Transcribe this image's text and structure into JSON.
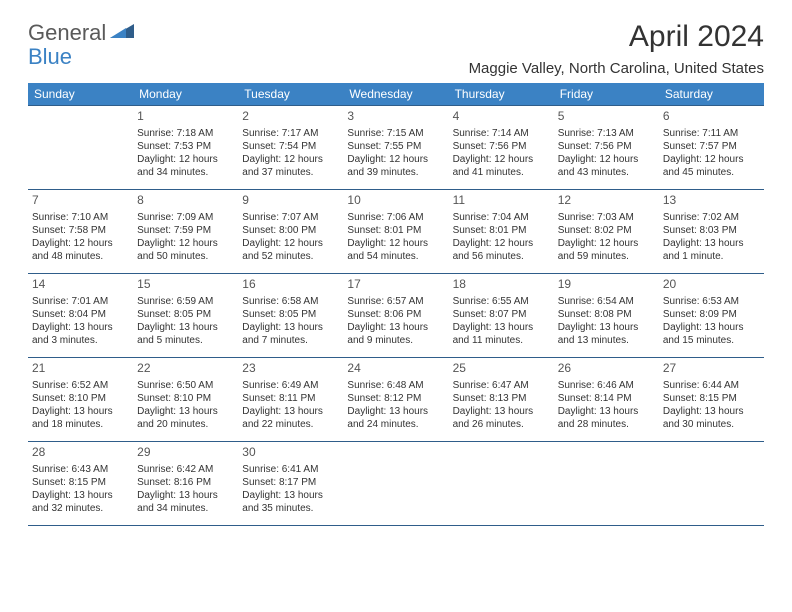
{
  "logo": {
    "general": "General",
    "blue": "Blue"
  },
  "title": "April 2024",
  "location": "Maggie Valley, North Carolina, United States",
  "colors": {
    "header_bg": "#3b82c4",
    "header_text": "#ffffff",
    "border": "#2f5d8a",
    "body_text": "#333333",
    "logo_gray": "#5a5a5a",
    "logo_blue": "#3b82c4"
  },
  "dayHeaders": [
    "Sunday",
    "Monday",
    "Tuesday",
    "Wednesday",
    "Thursday",
    "Friday",
    "Saturday"
  ],
  "weeks": [
    [
      null,
      {
        "n": "1",
        "sr": "Sunrise: 7:18 AM",
        "ss": "Sunset: 7:53 PM",
        "dl": "Daylight: 12 hours and 34 minutes."
      },
      {
        "n": "2",
        "sr": "Sunrise: 7:17 AM",
        "ss": "Sunset: 7:54 PM",
        "dl": "Daylight: 12 hours and 37 minutes."
      },
      {
        "n": "3",
        "sr": "Sunrise: 7:15 AM",
        "ss": "Sunset: 7:55 PM",
        "dl": "Daylight: 12 hours and 39 minutes."
      },
      {
        "n": "4",
        "sr": "Sunrise: 7:14 AM",
        "ss": "Sunset: 7:56 PM",
        "dl": "Daylight: 12 hours and 41 minutes."
      },
      {
        "n": "5",
        "sr": "Sunrise: 7:13 AM",
        "ss": "Sunset: 7:56 PM",
        "dl": "Daylight: 12 hours and 43 minutes."
      },
      {
        "n": "6",
        "sr": "Sunrise: 7:11 AM",
        "ss": "Sunset: 7:57 PM",
        "dl": "Daylight: 12 hours and 45 minutes."
      }
    ],
    [
      {
        "n": "7",
        "sr": "Sunrise: 7:10 AM",
        "ss": "Sunset: 7:58 PM",
        "dl": "Daylight: 12 hours and 48 minutes."
      },
      {
        "n": "8",
        "sr": "Sunrise: 7:09 AM",
        "ss": "Sunset: 7:59 PM",
        "dl": "Daylight: 12 hours and 50 minutes."
      },
      {
        "n": "9",
        "sr": "Sunrise: 7:07 AM",
        "ss": "Sunset: 8:00 PM",
        "dl": "Daylight: 12 hours and 52 minutes."
      },
      {
        "n": "10",
        "sr": "Sunrise: 7:06 AM",
        "ss": "Sunset: 8:01 PM",
        "dl": "Daylight: 12 hours and 54 minutes."
      },
      {
        "n": "11",
        "sr": "Sunrise: 7:04 AM",
        "ss": "Sunset: 8:01 PM",
        "dl": "Daylight: 12 hours and 56 minutes."
      },
      {
        "n": "12",
        "sr": "Sunrise: 7:03 AM",
        "ss": "Sunset: 8:02 PM",
        "dl": "Daylight: 12 hours and 59 minutes."
      },
      {
        "n": "13",
        "sr": "Sunrise: 7:02 AM",
        "ss": "Sunset: 8:03 PM",
        "dl": "Daylight: 13 hours and 1 minute."
      }
    ],
    [
      {
        "n": "14",
        "sr": "Sunrise: 7:01 AM",
        "ss": "Sunset: 8:04 PM",
        "dl": "Daylight: 13 hours and 3 minutes."
      },
      {
        "n": "15",
        "sr": "Sunrise: 6:59 AM",
        "ss": "Sunset: 8:05 PM",
        "dl": "Daylight: 13 hours and 5 minutes."
      },
      {
        "n": "16",
        "sr": "Sunrise: 6:58 AM",
        "ss": "Sunset: 8:05 PM",
        "dl": "Daylight: 13 hours and 7 minutes."
      },
      {
        "n": "17",
        "sr": "Sunrise: 6:57 AM",
        "ss": "Sunset: 8:06 PM",
        "dl": "Daylight: 13 hours and 9 minutes."
      },
      {
        "n": "18",
        "sr": "Sunrise: 6:55 AM",
        "ss": "Sunset: 8:07 PM",
        "dl": "Daylight: 13 hours and 11 minutes."
      },
      {
        "n": "19",
        "sr": "Sunrise: 6:54 AM",
        "ss": "Sunset: 8:08 PM",
        "dl": "Daylight: 13 hours and 13 minutes."
      },
      {
        "n": "20",
        "sr": "Sunrise: 6:53 AM",
        "ss": "Sunset: 8:09 PM",
        "dl": "Daylight: 13 hours and 15 minutes."
      }
    ],
    [
      {
        "n": "21",
        "sr": "Sunrise: 6:52 AM",
        "ss": "Sunset: 8:10 PM",
        "dl": "Daylight: 13 hours and 18 minutes."
      },
      {
        "n": "22",
        "sr": "Sunrise: 6:50 AM",
        "ss": "Sunset: 8:10 PM",
        "dl": "Daylight: 13 hours and 20 minutes."
      },
      {
        "n": "23",
        "sr": "Sunrise: 6:49 AM",
        "ss": "Sunset: 8:11 PM",
        "dl": "Daylight: 13 hours and 22 minutes."
      },
      {
        "n": "24",
        "sr": "Sunrise: 6:48 AM",
        "ss": "Sunset: 8:12 PM",
        "dl": "Daylight: 13 hours and 24 minutes."
      },
      {
        "n": "25",
        "sr": "Sunrise: 6:47 AM",
        "ss": "Sunset: 8:13 PM",
        "dl": "Daylight: 13 hours and 26 minutes."
      },
      {
        "n": "26",
        "sr": "Sunrise: 6:46 AM",
        "ss": "Sunset: 8:14 PM",
        "dl": "Daylight: 13 hours and 28 minutes."
      },
      {
        "n": "27",
        "sr": "Sunrise: 6:44 AM",
        "ss": "Sunset: 8:15 PM",
        "dl": "Daylight: 13 hours and 30 minutes."
      }
    ],
    [
      {
        "n": "28",
        "sr": "Sunrise: 6:43 AM",
        "ss": "Sunset: 8:15 PM",
        "dl": "Daylight: 13 hours and 32 minutes."
      },
      {
        "n": "29",
        "sr": "Sunrise: 6:42 AM",
        "ss": "Sunset: 8:16 PM",
        "dl": "Daylight: 13 hours and 34 minutes."
      },
      {
        "n": "30",
        "sr": "Sunrise: 6:41 AM",
        "ss": "Sunset: 8:17 PM",
        "dl": "Daylight: 13 hours and 35 minutes."
      },
      null,
      null,
      null,
      null
    ]
  ]
}
